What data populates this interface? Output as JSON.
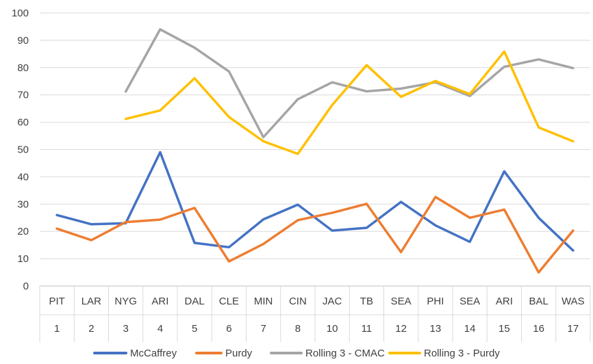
{
  "chart_data": {
    "type": "line",
    "title": "",
    "xlabel": "",
    "ylabel": "",
    "ylim": [
      0,
      100
    ],
    "yticks": [
      "0",
      "10",
      "20",
      "30",
      "40",
      "50",
      "60",
      "70",
      "80",
      "90",
      "100"
    ],
    "categories": [
      {
        "team": "PIT",
        "week": "1"
      },
      {
        "team": "LAR",
        "week": "2"
      },
      {
        "team": "NYG",
        "week": "3"
      },
      {
        "team": "ARI",
        "week": "4"
      },
      {
        "team": "DAL",
        "week": "5"
      },
      {
        "team": "CLE",
        "week": "6"
      },
      {
        "team": "MIN",
        "week": "7"
      },
      {
        "team": "CIN",
        "week": "8"
      },
      {
        "team": "JAC",
        "week": "10"
      },
      {
        "team": "TB",
        "week": "11"
      },
      {
        "team": "SEA",
        "week": "12"
      },
      {
        "team": "PHI",
        "week": "13"
      },
      {
        "team": "SEA",
        "week": "14"
      },
      {
        "team": "ARI",
        "week": "15"
      },
      {
        "team": "BAL",
        "week": "16"
      },
      {
        "team": "WAS",
        "week": "17"
      }
    ],
    "series": [
      {
        "name": "McCaffrey",
        "color": "#4472C4",
        "values": [
          26,
          22.6,
          23,
          49,
          15.8,
          14.2,
          24.4,
          29.8,
          20.3,
          21.3,
          30.8,
          22.2,
          16.2,
          42,
          25,
          13
        ]
      },
      {
        "name": "Purdy",
        "color": "#ED7D31",
        "values": [
          21,
          16.8,
          23.4,
          24.3,
          28.6,
          9,
          15.4,
          24.1,
          26.8,
          30.1,
          12.4,
          32.6,
          25,
          28,
          5,
          20.3
        ]
      },
      {
        "name": "Rolling 3 - CMAC",
        "color": "#A5A5A5",
        "values": [
          null,
          null,
          71.2,
          94,
          87.3,
          78.6,
          54.5,
          68.4,
          74.6,
          71.3,
          72.3,
          74.6,
          69.6,
          80.3,
          83,
          79.8
        ]
      },
      {
        "name": "Rolling 3 - Purdy",
        "color": "#FFC000",
        "values": [
          null,
          null,
          61.2,
          64.3,
          76.1,
          61.9,
          53,
          48.4,
          66.3,
          80.9,
          69.3,
          75.1,
          70.3,
          85.9,
          58.1,
          53
        ]
      }
    ],
    "legend": "bottom",
    "grid": true
  }
}
